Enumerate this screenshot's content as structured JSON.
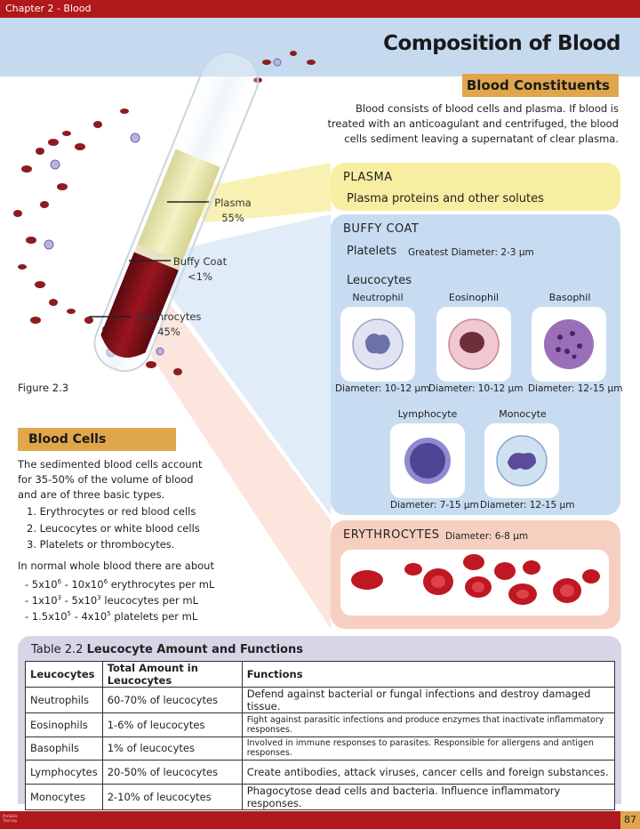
{
  "header": {
    "chapter": "Chapter 2 - Blood",
    "title": "Composition of Blood",
    "page_number": "87",
    "publisher_line1": "ProSkills",
    "publisher_line2": "Training"
  },
  "constituents": {
    "label": "Blood Constituents",
    "intro": "Blood consists of blood cells and plasma. If blood is treated with an anticoagulant and centrifuged, the blood cells sediment leaving a supernatant of clear plasma."
  },
  "tube": {
    "plasma_label": "Plasma",
    "plasma_pct": "55%",
    "buffy_label": "Buffy Coat",
    "buffy_pct": "<1%",
    "ery_label": "Erythrocytes",
    "ery_pct": "45%",
    "caption": "Figure 2.3"
  },
  "plasma_panel": {
    "heading": "PLASMA",
    "text": "Plasma proteins and other solutes"
  },
  "buffy_panel": {
    "heading": "BUFFY COAT",
    "platelets_label": "Platelets",
    "platelets_diameter": "Greatest Diameter: 2-3 µm",
    "leucocytes_label": "Leucocytes",
    "cells": [
      {
        "name": "Neutrophil",
        "diameter": "Diameter: 10-12 µm"
      },
      {
        "name": "Eosinophil",
        "diameter": "Diameter: 10-12 µm"
      },
      {
        "name": "Basophil",
        "diameter": "Diameter: 12-15 µm"
      },
      {
        "name": "Lymphocyte",
        "diameter": "Diameter: 7-15 µm"
      },
      {
        "name": "Monocyte",
        "diameter": "Diameter: 12-15 µm"
      }
    ]
  },
  "ery_panel": {
    "heading": "ERYTHROCYTES",
    "diameter": "Diameter: 6-8 µm"
  },
  "blood_cells": {
    "label": "Blood Cells",
    "intro": "The sedimented blood cells account for 35-50% of the volume of blood and are of three basic types.",
    "types": [
      "1. Erythrocytes or red blood cells",
      "2. Leucocytes or white blood cells",
      "3. Platelets or thrombocytes."
    ],
    "normal_intro": "In normal whole blood there are about",
    "counts": [
      {
        "prefix": "- 5x10",
        "exp1": "6",
        "mid": " - 10x10",
        "exp2": "6",
        "suffix": " erythrocytes per mL"
      },
      {
        "prefix": "- 1x10",
        "exp1": "3",
        "mid": " - 5x10",
        "exp2": "3",
        "suffix": " leucocytes per mL"
      },
      {
        "prefix": "- 1.5x10",
        "exp1": "5",
        "mid": " - 4x10",
        "exp2": "5",
        "suffix": " platelets per mL"
      }
    ]
  },
  "table": {
    "title_prefix": "Table 2.2 ",
    "title_bold": "Leucocyte Amount and Functions",
    "headers": [
      "Leucocytes",
      "Total Amount in Leucocytes",
      "Functions"
    ],
    "rows": [
      [
        "Neutrophils",
        "60-70% of leucocytes",
        "Defend against bacterial or fungal infections and destroy damaged tissue."
      ],
      [
        "Eosinophils",
        "1-6% of leucocytes",
        "Fight against parasitic infections and produce enzymes that inactivate inflammatory responses."
      ],
      [
        "Basophils",
        "1% of leucocytes",
        "Involved in immune responses to parasites. Responsible for allergens and antigen responses."
      ],
      [
        "Lymphocytes",
        "20-50% of leucocytes",
        "Create antibodies, attack viruses, cancer cells and foreign substances."
      ],
      [
        "Monocytes",
        "2-10% of leucocytes",
        "Phagocytose dead cells and bacteria. Influence inflammatory responses."
      ]
    ]
  },
  "colors": {
    "brand_red": "#b0181c",
    "label_orange": "#e0a64c",
    "plasma_yellow": "#f7eea1",
    "buffy_blue": "#c7dcf1",
    "ery_pink": "#f7cfc0",
    "table_lavender": "#d9d4e6"
  }
}
